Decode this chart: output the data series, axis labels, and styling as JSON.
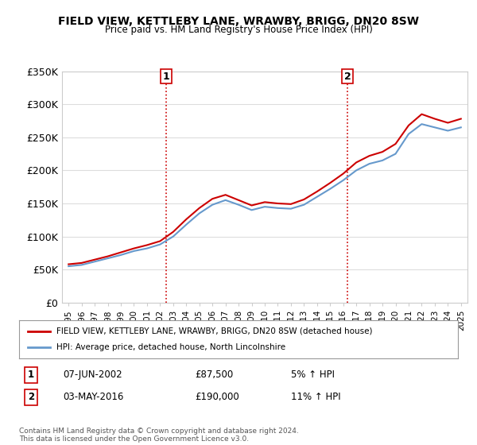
{
  "title": "FIELD VIEW, KETTLEBY LANE, WRAWBY, BRIGG, DN20 8SW",
  "subtitle": "Price paid vs. HM Land Registry's House Price Index (HPI)",
  "ylim": [
    0,
    350000
  ],
  "yticks": [
    0,
    50000,
    100000,
    150000,
    200000,
    250000,
    300000,
    350000
  ],
  "ytick_labels": [
    "£0",
    "£50K",
    "£100K",
    "£150K",
    "£200K",
    "£250K",
    "£300K",
    "£350K"
  ],
  "years": [
    1995,
    1996,
    1997,
    1998,
    1999,
    2000,
    2001,
    2002,
    2003,
    2004,
    2005,
    2006,
    2007,
    2008,
    2009,
    2010,
    2011,
    2012,
    2013,
    2014,
    2015,
    2016,
    2017,
    2018,
    2019,
    2020,
    2021,
    2022,
    2023,
    2024,
    2025
  ],
  "hpi_values": [
    55000,
    57000,
    62000,
    67000,
    72000,
    78000,
    82000,
    88000,
    100000,
    118000,
    135000,
    148000,
    155000,
    148000,
    140000,
    145000,
    143000,
    142000,
    148000,
    160000,
    172000,
    185000,
    200000,
    210000,
    215000,
    225000,
    255000,
    270000,
    265000,
    260000,
    265000
  ],
  "property_values": [
    58000,
    60000,
    65000,
    70000,
    76000,
    82000,
    87000,
    93000,
    107000,
    126000,
    143000,
    157000,
    163000,
    155000,
    147000,
    152000,
    150000,
    149000,
    156000,
    168000,
    181000,
    195000,
    212000,
    222000,
    228000,
    240000,
    268000,
    285000,
    278000,
    272000,
    278000
  ],
  "sale1_year": 2002.44,
  "sale1_price": 87500,
  "sale1_label": "1",
  "sale2_year": 2016.33,
  "sale2_price": 190000,
  "sale2_label": "2",
  "line1_color": "#cc0000",
  "line2_color": "#6699cc",
  "vline_color": "#cc0000",
  "vline_style": ":",
  "legend_label1": "FIELD VIEW, KETTLEBY LANE, WRAWBY, BRIGG, DN20 8SW (detached house)",
  "legend_label2": "HPI: Average price, detached house, North Lincolnshire",
  "annotation1": [
    "1",
    "07-JUN-2002",
    "£87,500",
    "5% ↑ HPI"
  ],
  "annotation2": [
    "2",
    "03-MAY-2016",
    "£190,000",
    "11% ↑ HPI"
  ],
  "footer": "Contains HM Land Registry data © Crown copyright and database right 2024.\nThis data is licensed under the Open Government Licence v3.0.",
  "bg_color": "#ffffff",
  "grid_color": "#dddddd"
}
